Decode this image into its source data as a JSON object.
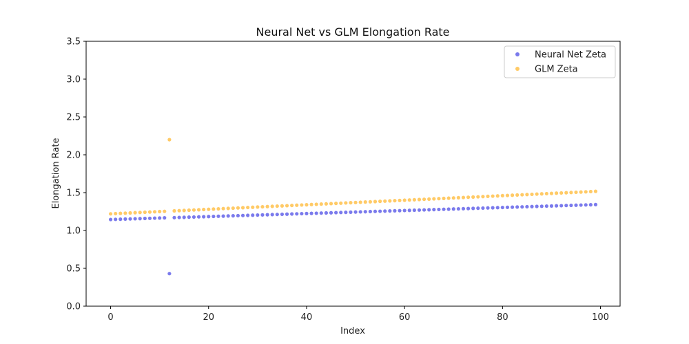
{
  "chart_data": {
    "type": "scatter",
    "title": "Neural Net vs GLM Elongation Rate",
    "xlabel": "Index",
    "ylabel": "Elongation Rate",
    "xlim": [
      -5,
      104
    ],
    "ylim": [
      0,
      3.5
    ],
    "xticks": [
      0,
      20,
      40,
      60,
      80,
      100
    ],
    "yticks": [
      0.0,
      0.5,
      1.0,
      1.5,
      2.0,
      2.5,
      3.0,
      3.5
    ],
    "grid": false,
    "legend_position": "top-right",
    "series": [
      {
        "name": "Neural Net Zeta",
        "color": "#4d4de6",
        "x": [
          0,
          1,
          2,
          3,
          4,
          5,
          6,
          7,
          8,
          9,
          10,
          11,
          12,
          13,
          14,
          15,
          16,
          17,
          18,
          19,
          20,
          21,
          22,
          23,
          24,
          25,
          26,
          27,
          28,
          29,
          30,
          31,
          32,
          33,
          34,
          35,
          36,
          37,
          38,
          39,
          40,
          41,
          42,
          43,
          44,
          45,
          46,
          47,
          48,
          49,
          50,
          51,
          52,
          53,
          54,
          55,
          56,
          57,
          58,
          59,
          60,
          61,
          62,
          63,
          64,
          65,
          66,
          67,
          68,
          69,
          70,
          71,
          72,
          73,
          74,
          75,
          76,
          77,
          78,
          79,
          80,
          81,
          82,
          83,
          84,
          85,
          86,
          87,
          88,
          89,
          90,
          91,
          92,
          93,
          94,
          95,
          96,
          97,
          98,
          99
        ],
        "y": [
          1.145,
          1.147,
          1.149,
          1.151,
          1.153,
          1.155,
          1.157,
          1.159,
          1.161,
          1.163,
          1.165,
          1.167,
          0.43,
          1.17,
          1.172,
          1.174,
          1.176,
          1.178,
          1.18,
          1.182,
          1.184,
          1.186,
          1.188,
          1.19,
          1.192,
          1.194,
          1.196,
          1.198,
          1.2,
          1.202,
          1.204,
          1.206,
          1.208,
          1.21,
          1.212,
          1.214,
          1.216,
          1.218,
          1.22,
          1.222,
          1.224,
          1.226,
          1.228,
          1.23,
          1.232,
          1.234,
          1.236,
          1.238,
          1.24,
          1.242,
          1.244,
          1.246,
          1.248,
          1.25,
          1.252,
          1.254,
          1.256,
          1.258,
          1.26,
          1.262,
          1.264,
          1.266,
          1.268,
          1.27,
          1.272,
          1.274,
          1.276,
          1.278,
          1.28,
          1.282,
          1.284,
          1.286,
          1.288,
          1.29,
          1.292,
          1.294,
          1.296,
          1.298,
          1.3,
          1.302,
          1.304,
          1.306,
          1.308,
          1.31,
          1.312,
          1.314,
          1.316,
          1.318,
          1.32,
          1.322,
          1.324,
          1.326,
          1.328,
          1.33,
          1.332,
          1.334,
          1.336,
          1.338,
          1.34,
          1.342
        ]
      },
      {
        "name": "GLM Zeta",
        "color": "#ffb833",
        "x": [
          0,
          1,
          2,
          3,
          4,
          5,
          6,
          7,
          8,
          9,
          10,
          11,
          12,
          13,
          14,
          15,
          16,
          17,
          18,
          19,
          20,
          21,
          22,
          23,
          24,
          25,
          26,
          27,
          28,
          29,
          30,
          31,
          32,
          33,
          34,
          35,
          36,
          37,
          38,
          39,
          40,
          41,
          42,
          43,
          44,
          45,
          46,
          47,
          48,
          49,
          50,
          51,
          52,
          53,
          54,
          55,
          56,
          57,
          58,
          59,
          60,
          61,
          62,
          63,
          64,
          65,
          66,
          67,
          68,
          69,
          70,
          71,
          72,
          73,
          74,
          75,
          76,
          77,
          78,
          79,
          80,
          81,
          82,
          83,
          84,
          85,
          86,
          87,
          88,
          89,
          90,
          91,
          92,
          93,
          94,
          95,
          96,
          97,
          98,
          99
        ],
        "y": [
          1.22,
          1.223,
          1.226,
          1.229,
          1.232,
          1.235,
          1.238,
          1.241,
          1.244,
          1.247,
          1.25,
          1.253,
          2.2,
          1.259,
          1.262,
          1.265,
          1.268,
          1.271,
          1.274,
          1.277,
          1.28,
          1.283,
          1.286,
          1.289,
          1.292,
          1.295,
          1.298,
          1.301,
          1.304,
          1.307,
          1.31,
          1.313,
          1.316,
          1.319,
          1.322,
          1.325,
          1.328,
          1.331,
          1.334,
          1.337,
          1.34,
          1.343,
          1.346,
          1.349,
          1.352,
          1.355,
          1.358,
          1.361,
          1.364,
          1.367,
          1.37,
          1.373,
          1.376,
          1.379,
          1.382,
          1.385,
          1.388,
          1.391,
          1.394,
          1.397,
          1.4,
          1.403,
          1.406,
          1.409,
          1.412,
          1.415,
          1.418,
          1.421,
          1.424,
          1.427,
          1.43,
          1.433,
          1.436,
          1.439,
          1.442,
          1.445,
          1.448,
          1.451,
          1.454,
          1.457,
          1.46,
          1.463,
          1.466,
          1.469,
          1.472,
          1.475,
          1.478,
          1.481,
          1.484,
          1.487,
          1.49,
          1.493,
          1.496,
          1.499,
          1.502,
          1.505,
          1.508,
          1.511,
          1.514,
          1.517
        ]
      }
    ]
  }
}
